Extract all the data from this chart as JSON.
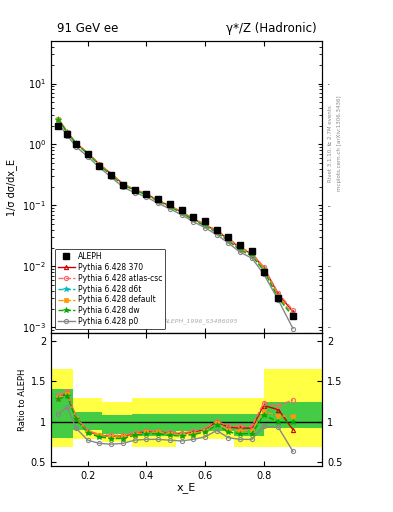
{
  "title_left": "91 GeV ee",
  "title_right": "γ*/Z (Hadronic)",
  "ylabel_main": "1/σ dσ/dx_E",
  "ylabel_ratio": "Ratio to ALEPH",
  "xlabel": "x_E",
  "right_label_top": "Rivet 3.1.10, ≥ 2.7M events",
  "right_label_bottom": "mcplots.cern.ch [arXiv:1306.3436]",
  "watermark": "ALEPH_1996_S3486095",
  "aleph_x": [
    0.1,
    0.13,
    0.16,
    0.2,
    0.24,
    0.28,
    0.32,
    0.36,
    0.4,
    0.44,
    0.48,
    0.52,
    0.56,
    0.6,
    0.64,
    0.68,
    0.72,
    0.76,
    0.8,
    0.85,
    0.9
  ],
  "aleph_y": [
    2.0,
    1.5,
    1.0,
    0.7,
    0.45,
    0.32,
    0.22,
    0.18,
    0.155,
    0.125,
    0.105,
    0.085,
    0.065,
    0.055,
    0.04,
    0.03,
    0.022,
    0.018,
    0.008,
    0.003,
    0.0015
  ],
  "mc_x": [
    0.1,
    0.13,
    0.16,
    0.2,
    0.24,
    0.28,
    0.32,
    0.36,
    0.4,
    0.44,
    0.48,
    0.52,
    0.56,
    0.6,
    0.64,
    0.68,
    0.72,
    0.76,
    0.8,
    0.85,
    0.9
  ],
  "py370_y": [
    2.6,
    1.6,
    1.05,
    0.72,
    0.47,
    0.33,
    0.225,
    0.18,
    0.155,
    0.12,
    0.098,
    0.078,
    0.06,
    0.048,
    0.038,
    0.028,
    0.02,
    0.016,
    0.0095,
    0.0035,
    0.0018
  ],
  "py_atl_y": [
    2.65,
    1.62,
    1.06,
    0.73,
    0.48,
    0.33,
    0.228,
    0.182,
    0.156,
    0.122,
    0.099,
    0.079,
    0.061,
    0.049,
    0.039,
    0.029,
    0.0205,
    0.0165,
    0.0098,
    0.0036,
    0.0019
  ],
  "py_d6t_y": [
    2.6,
    1.58,
    1.04,
    0.71,
    0.46,
    0.32,
    0.22,
    0.178,
    0.152,
    0.119,
    0.097,
    0.077,
    0.059,
    0.047,
    0.037,
    0.027,
    0.0195,
    0.0155,
    0.009,
    0.0032,
    0.0016
  ],
  "py_def_y": [
    2.6,
    1.59,
    1.04,
    0.72,
    0.47,
    0.32,
    0.222,
    0.179,
    0.153,
    0.12,
    0.097,
    0.077,
    0.059,
    0.047,
    0.037,
    0.027,
    0.0195,
    0.0155,
    0.009,
    0.0032,
    0.0016
  ],
  "py_dw_y": [
    2.55,
    1.57,
    1.03,
    0.7,
    0.46,
    0.31,
    0.218,
    0.176,
    0.15,
    0.117,
    0.095,
    0.075,
    0.058,
    0.046,
    0.036,
    0.026,
    0.0185,
    0.0148,
    0.0086,
    0.003,
    0.0015
  ],
  "py_p0_y": [
    2.2,
    1.4,
    0.92,
    0.63,
    0.42,
    0.29,
    0.2,
    0.162,
    0.138,
    0.108,
    0.088,
    0.07,
    0.054,
    0.043,
    0.033,
    0.024,
    0.017,
    0.0136,
    0.0075,
    0.0028,
    0.00095
  ],
  "ratio_x": [
    0.1,
    0.13,
    0.16,
    0.2,
    0.24,
    0.28,
    0.32,
    0.36,
    0.4,
    0.44,
    0.48,
    0.52,
    0.56,
    0.6,
    0.64,
    0.68,
    0.72,
    0.76,
    0.8,
    0.85,
    0.9
  ],
  "ratio_py370": [
    1.3,
    1.35,
    1.05,
    0.88,
    0.83,
    0.82,
    0.82,
    0.85,
    0.88,
    0.87,
    0.86,
    0.85,
    0.87,
    0.9,
    1.0,
    0.93,
    0.92,
    0.92,
    1.2,
    1.15,
    0.9
  ],
  "ratio_pyatl": [
    1.33,
    1.38,
    1.06,
    0.89,
    0.84,
    0.83,
    0.83,
    0.86,
    0.89,
    0.88,
    0.87,
    0.86,
    0.88,
    0.91,
    1.01,
    0.94,
    0.94,
    0.94,
    1.23,
    1.2,
    1.27
  ],
  "ratio_pyd6t": [
    1.3,
    1.33,
    1.04,
    0.87,
    0.82,
    0.81,
    0.8,
    0.84,
    0.86,
    0.86,
    0.85,
    0.84,
    0.85,
    0.88,
    0.98,
    0.9,
    0.89,
    0.89,
    1.13,
    1.07,
    1.07
  ],
  "ratio_pydef": [
    1.3,
    1.34,
    1.04,
    0.87,
    0.83,
    0.81,
    0.81,
    0.84,
    0.87,
    0.87,
    0.85,
    0.84,
    0.85,
    0.88,
    0.98,
    0.9,
    0.89,
    0.89,
    1.13,
    1.07,
    1.07
  ],
  "ratio_pydw": [
    1.28,
    1.32,
    1.03,
    0.86,
    0.81,
    0.79,
    0.79,
    0.83,
    0.85,
    0.85,
    0.83,
    0.82,
    0.84,
    0.87,
    0.96,
    0.87,
    0.85,
    0.85,
    1.08,
    1.0,
    1.0
  ],
  "ratio_pyp0": [
    1.1,
    1.18,
    0.92,
    0.77,
    0.73,
    0.72,
    0.73,
    0.77,
    0.78,
    0.78,
    0.77,
    0.76,
    0.78,
    0.81,
    0.89,
    0.8,
    0.78,
    0.78,
    0.94,
    0.93,
    0.63
  ],
  "band_x_edges": [
    0.075,
    0.15,
    0.25,
    0.35,
    0.5,
    0.7,
    0.8,
    1.0
  ],
  "green_band_lo": [
    0.8,
    0.9,
    0.85,
    0.82,
    0.88,
    0.82,
    0.92,
    0.92
  ],
  "green_band_hi": [
    1.4,
    1.12,
    1.08,
    1.1,
    1.1,
    1.1,
    1.25,
    1.25
  ],
  "yellow_band_lo": [
    0.68,
    0.78,
    0.75,
    0.68,
    0.78,
    0.68,
    0.68,
    0.68
  ],
  "yellow_band_hi": [
    1.65,
    1.3,
    1.25,
    1.3,
    1.3,
    1.3,
    1.65,
    1.65
  ],
  "color_370": "#cc0000",
  "color_atl": "#ff6666",
  "color_d6t": "#00bbbb",
  "color_def": "#ff9900",
  "color_dw": "#00aa00",
  "color_p0": "#888888",
  "xlim": [
    0.075,
    1.0
  ],
  "ylim_main": [
    0.0008,
    50
  ],
  "ylim_ratio": [
    0.45,
    2.1
  ],
  "ratio_yticks": [
    0.5,
    1.0,
    1.5,
    2.0
  ],
  "ratio_yticklabels": [
    "0.5",
    "1",
    "1.5",
    "2"
  ]
}
